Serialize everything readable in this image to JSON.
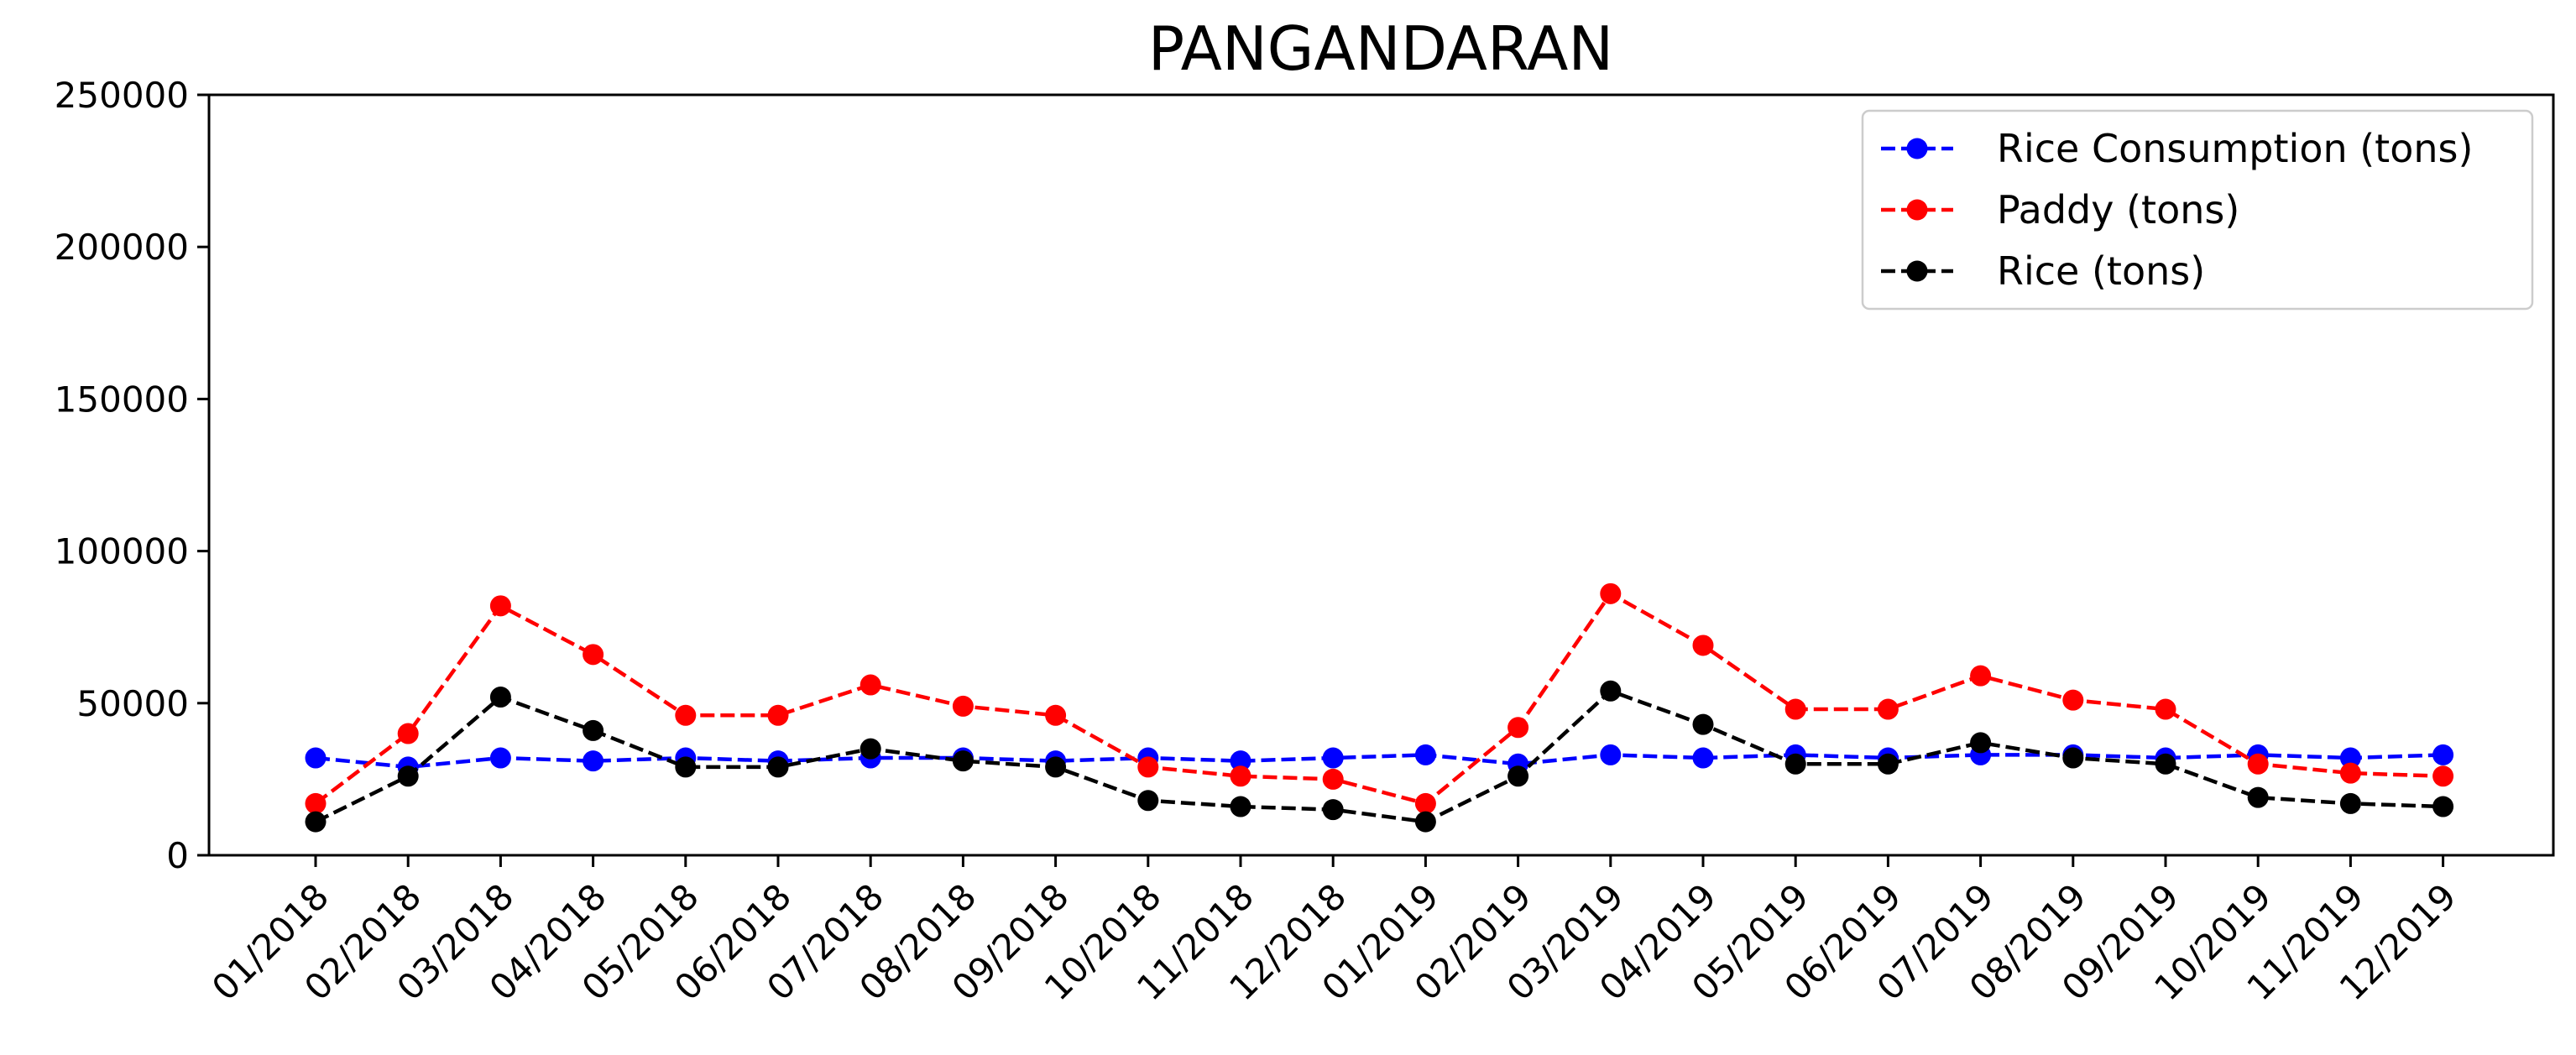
{
  "chart_data": {
    "type": "line",
    "title": "PANGANDARAN",
    "xlabel": "",
    "ylabel": "",
    "ylim": [
      0,
      250000
    ],
    "yticks": [
      0,
      50000,
      100000,
      150000,
      200000,
      250000
    ],
    "grid": false,
    "legend_position": "top-right",
    "categories": [
      "01/2018",
      "02/2018",
      "03/2018",
      "04/2018",
      "05/2018",
      "06/2018",
      "07/2018",
      "08/2018",
      "09/2018",
      "10/2018",
      "11/2018",
      "12/2018",
      "01/2019",
      "02/2019",
      "03/2019",
      "04/2019",
      "05/2019",
      "06/2019",
      "07/2019",
      "08/2019",
      "09/2019",
      "10/2019",
      "11/2019",
      "12/2019"
    ],
    "series": [
      {
        "name": "Rice Consumption (tons)",
        "color": "#0000ff",
        "line_style": "dashed",
        "marker": "circle",
        "values": [
          32000,
          29000,
          32000,
          31000,
          32000,
          31000,
          32000,
          32000,
          31000,
          32000,
          31000,
          32000,
          33000,
          30000,
          33000,
          32000,
          33000,
          32000,
          33000,
          33000,
          32000,
          33000,
          32000,
          33000
        ]
      },
      {
        "name": "Paddy (tons)",
        "color": "#ff0000",
        "line_style": "dashed",
        "marker": "circle",
        "values": [
          17000,
          40000,
          82000,
          66000,
          46000,
          46000,
          56000,
          49000,
          46000,
          29000,
          26000,
          25000,
          17000,
          42000,
          86000,
          69000,
          48000,
          48000,
          59000,
          51000,
          48000,
          30000,
          27000,
          26000
        ]
      },
      {
        "name": "Rice (tons)",
        "color": "#000000",
        "line_style": "dashed",
        "marker": "circle",
        "values": [
          11000,
          26000,
          52000,
          41000,
          29000,
          29000,
          35000,
          31000,
          29000,
          18000,
          16000,
          15000,
          11000,
          26000,
          54000,
          43000,
          30000,
          30000,
          37000,
          32000,
          30000,
          19000,
          17000,
          16000
        ]
      }
    ]
  }
}
